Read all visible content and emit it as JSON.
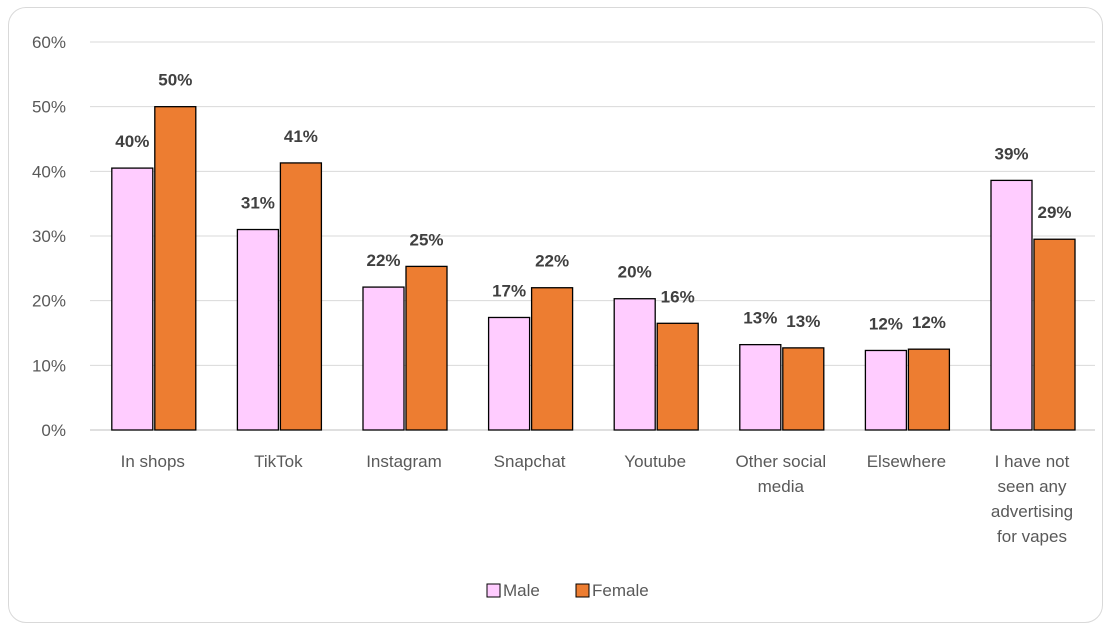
{
  "chart_data": {
    "type": "bar",
    "categories": [
      [
        "In shops"
      ],
      [
        "TikTok"
      ],
      [
        "Instagram"
      ],
      [
        "Snapchat"
      ],
      [
        "Youtube"
      ],
      [
        "Other social",
        "media"
      ],
      [
        "Elsewhere"
      ],
      [
        "I have not",
        "seen any",
        "advertising",
        "for vapes"
      ]
    ],
    "series": [
      {
        "name": "Male",
        "color": "#ffccff",
        "values": [
          40.5,
          31,
          22.1,
          17.4,
          20.3,
          13.2,
          12.3,
          38.6
        ],
        "labels": [
          "40%",
          "31%",
          "22%",
          "17%",
          "20%",
          "13%",
          "12%",
          "39%"
        ]
      },
      {
        "name": "Female",
        "color": "#ed7d31",
        "values": [
          50,
          41.3,
          25.3,
          22,
          16.5,
          12.7,
          12.5,
          29.5
        ],
        "labels": [
          "50%",
          "41%",
          "25%",
          "22%",
          "16%",
          "13%",
          "12%",
          "29%"
        ]
      }
    ],
    "ylim": [
      0,
      60
    ],
    "yticks": [
      "0%",
      "10%",
      "20%",
      "30%",
      "40%",
      "50%",
      "60%"
    ],
    "grid": true,
    "legend": "bottom",
    "title": "",
    "xlabel": "",
    "ylabel": ""
  }
}
